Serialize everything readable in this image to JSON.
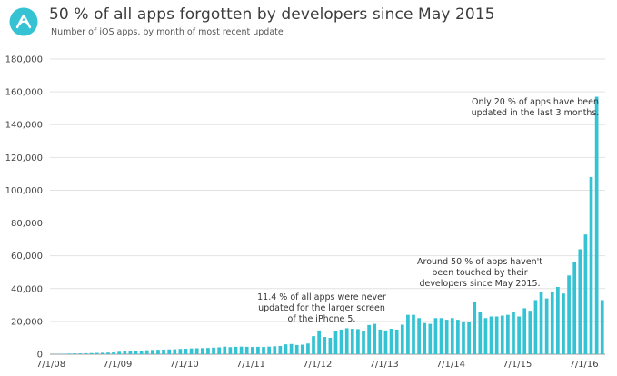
{
  "header": {
    "title": "50 % of all apps forgotten by developers since May 2015",
    "subtitle": "Number of iOS apps, by month of most recent update"
  },
  "colors": {
    "bar": "#35c3d3",
    "logo": "#35c3d3",
    "grid": "#e2e2e2"
  },
  "icons": {
    "logo": "app-logo-icon"
  },
  "chart_data": {
    "type": "bar",
    "title": "50 % of all apps forgotten by developers since May 2015",
    "subtitle": "Number of iOS apps, by month of most recent update",
    "xlabel": "",
    "ylabel": "",
    "ylim": [
      0,
      180000
    ],
    "y_ticks": [
      "0",
      "20,000",
      "40,000",
      "60,000",
      "80,000",
      "100,000",
      "120,000",
      "140,000",
      "160,000",
      "180,000"
    ],
    "x_ticks": [
      "7/1/08",
      "7/1/09",
      "7/1/10",
      "7/1/11",
      "7/1/12",
      "7/1/13",
      "7/1/14",
      "7/1/15",
      "7/1/16"
    ],
    "grid": true,
    "start_month": "7/1/08",
    "values": [
      0,
      200,
      300,
      400,
      500,
      500,
      600,
      700,
      800,
      900,
      1000,
      1100,
      1500,
      1700,
      1800,
      2000,
      2200,
      2400,
      2600,
      2700,
      2800,
      2900,
      3000,
      3200,
      3300,
      3500,
      3600,
      3700,
      3800,
      4000,
      4200,
      4600,
      4300,
      4500,
      4600,
      4500,
      4400,
      4500,
      4400,
      4600,
      4800,
      5000,
      6000,
      6200,
      5600,
      5800,
      6500,
      11000,
      14500,
      10500,
      10000,
      14000,
      15000,
      15800,
      15500,
      15300,
      14000,
      17800,
      18500,
      15000,
      14500,
      15500,
      15000,
      18000,
      24000,
      24000,
      22000,
      19000,
      18500,
      22000,
      22000,
      21000,
      22000,
      21000,
      20000,
      19500,
      32000,
      26000,
      22000,
      23000,
      23000,
      23500,
      24000,
      26000,
      23000,
      28000,
      26500,
      33000,
      38000,
      34000,
      38000,
      41000,
      37000,
      48000,
      56000,
      64000,
      73000,
      108000,
      157000,
      33000
    ],
    "annotations": [
      {
        "lines": [
          "11.4 % of all apps were never",
          "updated for the larger screen",
          "of the iPhone 5."
        ]
      },
      {
        "lines": [
          "Around 50 % of apps haven't",
          "been touched by their",
          "developers since May 2015."
        ]
      },
      {
        "lines": [
          "Only 20 % of apps have been",
          "updated in the last 3 months."
        ]
      }
    ]
  }
}
